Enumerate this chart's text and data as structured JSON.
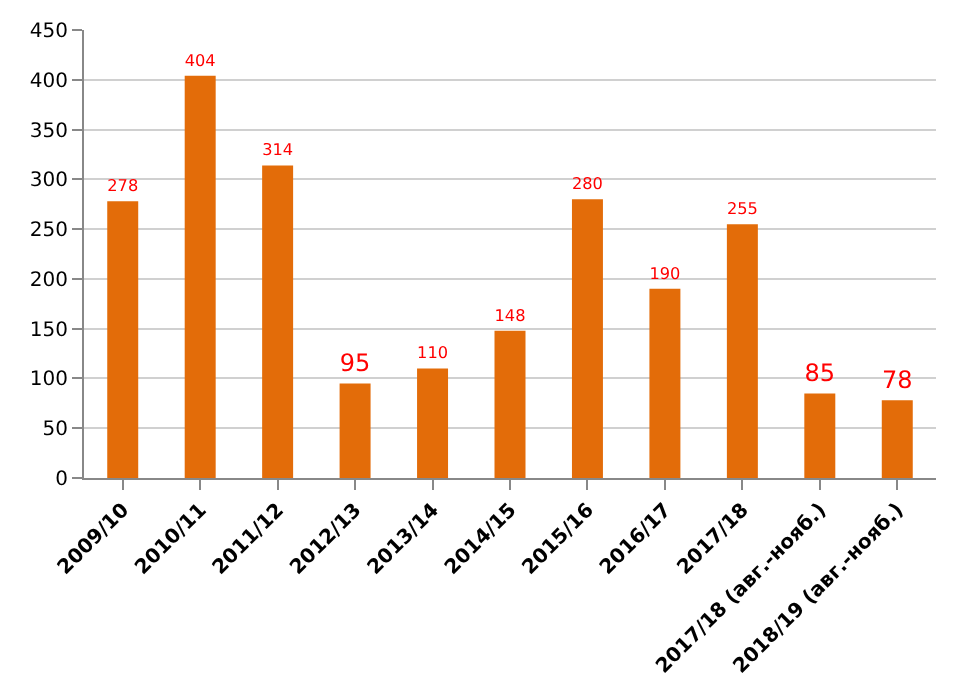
{
  "chart_data": {
    "type": "bar",
    "categories": [
      "2009/10",
      "2010/11",
      "2011/12",
      "2012/13",
      "2013/14",
      "2014/15",
      "2015/16",
      "2016/17",
      "2017/18",
      "2017/18 (авг.-нояб.)",
      "2018/19 (авг.-нояб.)"
    ],
    "values": [
      278,
      404,
      314,
      95,
      110,
      148,
      280,
      190,
      255,
      85,
      78
    ],
    "color": "#e36c09",
    "ylim": [
      0,
      450
    ],
    "yticks": [
      0,
      50,
      100,
      150,
      200,
      250,
      300,
      350,
      400,
      450
    ],
    "grid": "y",
    "data_labels": true,
    "legend": false
  }
}
